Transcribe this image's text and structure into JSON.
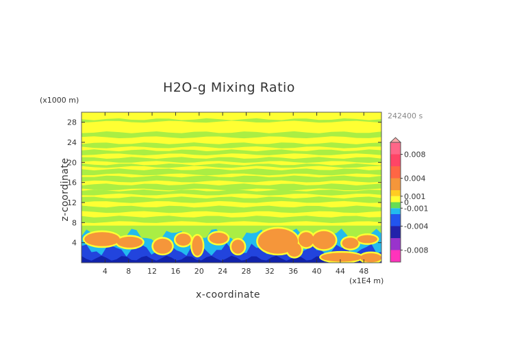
{
  "chart_data": {
    "type": "heatmap",
    "title": "H2O-g Mixing Ratio",
    "xlabel": "x-coordinate",
    "ylabel": "z-coordinate",
    "x_unit": "(x1E4 m)",
    "y_unit": "(x1000 m)",
    "timestamp": "242400 s",
    "xlim": [
      0,
      51
    ],
    "ylim": [
      0,
      30
    ],
    "x_ticks": [
      4,
      8,
      12,
      16,
      20,
      24,
      28,
      32,
      36,
      40,
      44,
      48
    ],
    "y_ticks": [
      4,
      8,
      12,
      16,
      20,
      24,
      28
    ],
    "x_tick_labels": [
      "4",
      "8",
      "12",
      "16",
      "20",
      "24",
      "28",
      "32",
      "36",
      "40",
      "44",
      "48"
    ],
    "y_tick_labels": [
      "4",
      "8",
      "12",
      "16",
      "20",
      "24",
      "28"
    ],
    "colorbar": {
      "labels": [
        {
          "value": 0.008,
          "text": "0.008"
        },
        {
          "value": 0.004,
          "text": "0.004"
        },
        {
          "value": 0.001,
          "text": "0.001"
        },
        {
          "value": 0,
          "text": "0"
        },
        {
          "value": -0.001,
          "text": "-0.001"
        },
        {
          "value": -0.004,
          "text": "-0.004"
        },
        {
          "value": -0.008,
          "text": "-0.008"
        }
      ],
      "range": [
        -0.01,
        0.01
      ],
      "extend": "max"
    },
    "colors": {
      "background": "#ffff33",
      "band": "#aaee44",
      "orange": "#f5963a",
      "cyan": "#22bbee",
      "blue": "#2244dd",
      "darkblue": "#1122aa"
    },
    "regions": {
      "bands": [
        {
          "z0": 28.1,
          "z1": 28.6
        },
        {
          "z0": 25.0,
          "z1": 26.0
        },
        {
          "z0": 23.0,
          "z1": 23.8
        },
        {
          "z0": 21.6,
          "z1": 22.4
        },
        {
          "z0": 20.1,
          "z1": 20.9
        },
        {
          "z0": 19.1,
          "z1": 19.6
        },
        {
          "z0": 17.6,
          "z1": 18.6
        },
        {
          "z0": 16.2,
          "z1": 17.2
        },
        {
          "z0": 14.6,
          "z1": 15.6
        },
        {
          "z0": 13.6,
          "z1": 14.4
        },
        {
          "z0": 12.1,
          "z1": 13.0
        },
        {
          "z0": 10.1,
          "z1": 11.2
        },
        {
          "z0": 8.1,
          "z1": 9.2
        }
      ],
      "orange_blobs": [
        {
          "x": 3.5,
          "z": 4.7,
          "rx": 3.0,
          "rz": 1.4
        },
        {
          "x": 8.2,
          "z": 4.1,
          "rx": 2.2,
          "rz": 1.1
        },
        {
          "x": 13.8,
          "z": 3.3,
          "rx": 1.6,
          "rz": 1.5
        },
        {
          "x": 17.3,
          "z": 4.6,
          "rx": 1.3,
          "rz": 1.2
        },
        {
          "x": 19.7,
          "z": 3.4,
          "rx": 0.9,
          "rz": 2.0
        },
        {
          "x": 23.3,
          "z": 4.9,
          "rx": 1.6,
          "rz": 1.1
        },
        {
          "x": 26.6,
          "z": 3.2,
          "rx": 1.1,
          "rz": 1.4
        },
        {
          "x": 33.4,
          "z": 4.3,
          "rx": 3.4,
          "rz": 2.5
        },
        {
          "x": 36.2,
          "z": 2.6,
          "rx": 1.2,
          "rz": 1.4
        },
        {
          "x": 38.2,
          "z": 4.6,
          "rx": 1.3,
          "rz": 1.5
        },
        {
          "x": 41.2,
          "z": 4.5,
          "rx": 2.0,
          "rz": 1.8
        },
        {
          "x": 45.7,
          "z": 3.9,
          "rx": 1.4,
          "rz": 1.1
        },
        {
          "x": 48.6,
          "z": 4.7,
          "rx": 1.7,
          "rz": 0.8
        },
        {
          "x": 44.2,
          "z": 1.1,
          "rx": 3.5,
          "rz": 0.9
        },
        {
          "x": 49.2,
          "z": 1.0,
          "rx": 1.8,
          "rz": 0.9
        }
      ]
    }
  }
}
